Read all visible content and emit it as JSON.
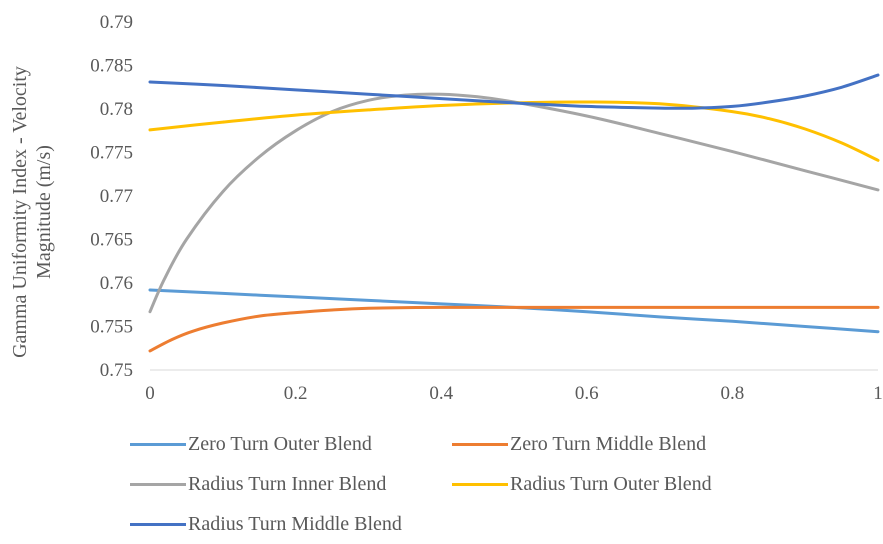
{
  "chart_data": {
    "type": "line",
    "title": "",
    "xlabel": "",
    "ylabel_lines": [
      "Gamma Uniformity Index - Velocity",
      "Magnitude (m/s)"
    ],
    "xlim": [
      0,
      1
    ],
    "ylim": [
      0.75,
      0.79
    ],
    "x_ticks": [
      "0",
      "0.2",
      "0.4",
      "0.6",
      "0.8",
      "1"
    ],
    "y_ticks": [
      "0.75",
      "0.755",
      "0.76",
      "0.765",
      "0.77",
      "0.775",
      "0.78",
      "0.785",
      "0.79"
    ],
    "grid": false,
    "legend_position": "bottom",
    "series": [
      {
        "name": "Zero Turn Outer Blend",
        "color": "#5B9BD5",
        "x": [
          0,
          0.1,
          0.2,
          0.3,
          0.4,
          0.5,
          0.6,
          0.7,
          0.8,
          0.9,
          1.0
        ],
        "y": [
          0.7592,
          0.7588,
          0.7584,
          0.758,
          0.7576,
          0.7572,
          0.7567,
          0.7561,
          0.7556,
          0.755,
          0.7544
        ]
      },
      {
        "name": "Zero Turn Middle Blend",
        "color": "#ED7D31",
        "x": [
          0,
          0.03,
          0.06,
          0.1,
          0.15,
          0.2,
          0.25,
          0.3,
          0.4,
          0.5,
          0.6,
          0.7,
          0.8,
          0.9,
          1.0
        ],
        "y": [
          0.7522,
          0.7535,
          0.7545,
          0.7554,
          0.7562,
          0.7566,
          0.7569,
          0.7571,
          0.7572,
          0.7572,
          0.7572,
          0.7572,
          0.7572,
          0.7572,
          0.7572
        ]
      },
      {
        "name": "Radius Turn Inner Blend",
        "color": "#A5A5A5",
        "x": [
          0,
          0.02,
          0.05,
          0.1,
          0.15,
          0.2,
          0.25,
          0.3,
          0.35,
          0.4,
          0.45,
          0.5,
          0.6,
          0.7,
          0.8,
          0.9,
          1.0
        ],
        "y": [
          0.7567,
          0.7605,
          0.765,
          0.7705,
          0.7745,
          0.7775,
          0.7797,
          0.781,
          0.7816,
          0.7817,
          0.7814,
          0.7808,
          0.7792,
          0.7772,
          0.7751,
          0.7729,
          0.7707
        ]
      },
      {
        "name": "Radius Turn Outer Blend",
        "color": "#FFC000",
        "x": [
          0,
          0.1,
          0.2,
          0.3,
          0.4,
          0.5,
          0.6,
          0.7,
          0.8,
          0.85,
          0.9,
          0.95,
          1.0
        ],
        "y": [
          0.7776,
          0.7785,
          0.7793,
          0.7799,
          0.7804,
          0.7807,
          0.7808,
          0.7806,
          0.7797,
          0.7789,
          0.7777,
          0.7761,
          0.7741
        ]
      },
      {
        "name": "Radius Turn Middle Blend",
        "color": "#4472C4",
        "x": [
          0,
          0.1,
          0.2,
          0.3,
          0.4,
          0.5,
          0.6,
          0.7,
          0.75,
          0.8,
          0.85,
          0.9,
          0.95,
          1.0
        ],
        "y": [
          0.7831,
          0.7827,
          0.7822,
          0.7817,
          0.7812,
          0.7807,
          0.7803,
          0.7801,
          0.7801,
          0.7803,
          0.7808,
          0.7815,
          0.7825,
          0.7839
        ]
      }
    ]
  }
}
